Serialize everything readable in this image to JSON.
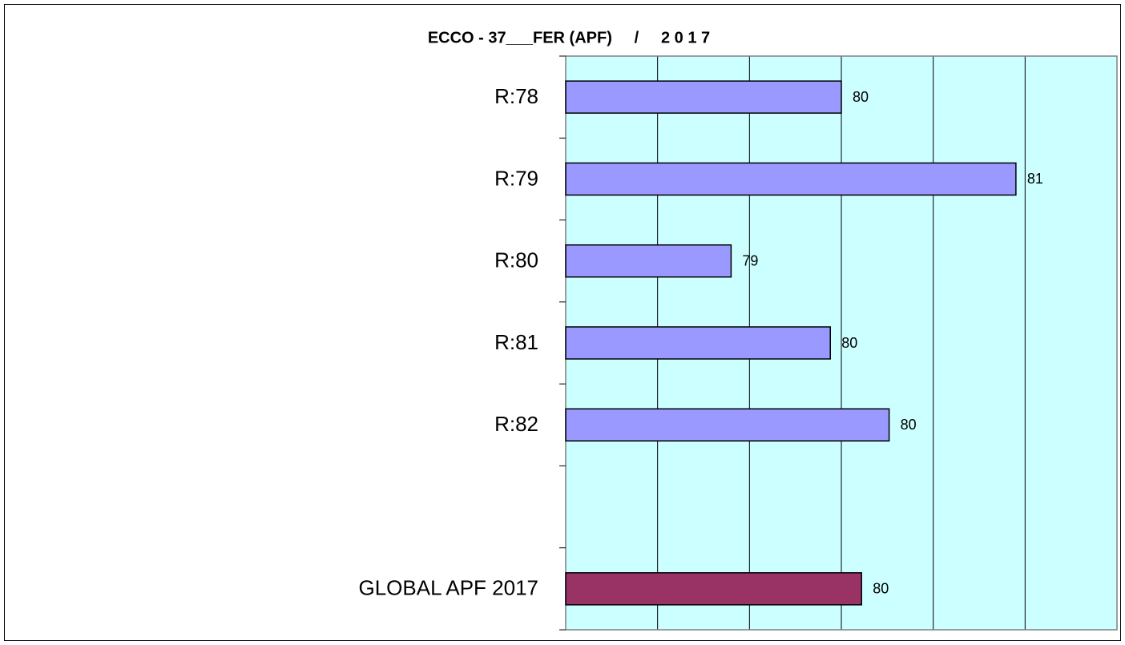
{
  "chart_data": {
    "type": "barh",
    "title": "ECCO - 37___FER (APF)     /     2 0 1 7",
    "categories": [
      "R:78",
      "R:79",
      "R:80",
      "R:81",
      "R:82",
      null,
      "GLOBAL APF   2017"
    ],
    "values": [
      80.0,
      80.95,
      79.4,
      79.94,
      80.26,
      null,
      80.11
    ],
    "value_labels": [
      "80",
      "81",
      "79",
      "80",
      "80",
      null,
      "80"
    ],
    "colors": [
      "#9999ff",
      "#9999ff",
      "#9999ff",
      "#9999ff",
      "#9999ff",
      null,
      "#993366"
    ],
    "xlim": [
      78.5,
      81.5
    ],
    "xticks": [
      78.5,
      79,
      79.5,
      80,
      80.5,
      81,
      81.5
    ],
    "grid": true,
    "background": "#ccffff"
  }
}
